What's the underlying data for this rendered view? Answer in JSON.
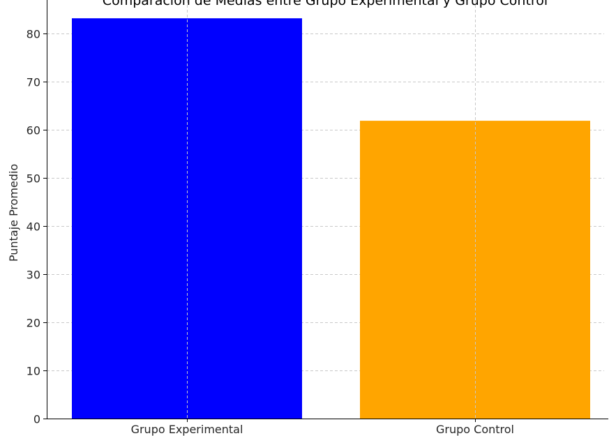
{
  "chart_data": {
    "type": "bar",
    "title": "Comparación de Medias entre Grupo Experimental y Grupo Control",
    "xlabel": "",
    "ylabel": "Puntaje Promedio",
    "categories": [
      "Grupo Experimental",
      "Grupo Control"
    ],
    "values": [
      83.2,
      61.9
    ],
    "colors": [
      "#0000ff",
      "#ffa500"
    ],
    "ylim": [
      0,
      87
    ],
    "yticks": [
      0,
      10,
      20,
      30,
      40,
      50,
      60,
      70,
      80
    ],
    "ytick_labels": [
      "0",
      "10",
      "20",
      "30",
      "40",
      "50",
      "60",
      "70",
      "80"
    ],
    "grid": true,
    "legend": "none"
  }
}
